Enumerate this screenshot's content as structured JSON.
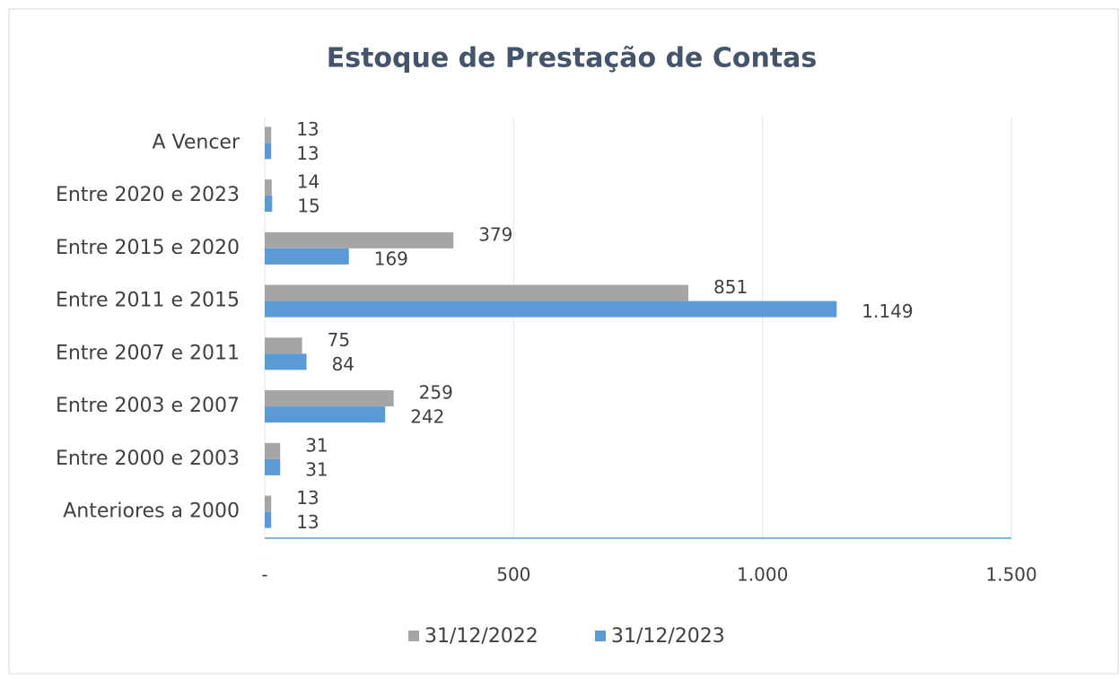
{
  "chart_data": {
    "type": "bar",
    "orientation": "horizontal",
    "title": "Estoque de Prestação de Contas",
    "categories": [
      "A Vencer",
      "Entre 2020 e 2023",
      "Entre 2015 e 2020",
      "Entre 2011 e 2015",
      "Entre 2007 e 2011",
      "Entre 2003 e 2007",
      "Entre 2000 e 2003",
      "Anteriores a 2000"
    ],
    "series": [
      {
        "name": "31/12/2022",
        "color": "#a5a5a5",
        "values": [
          13,
          14,
          379,
          851,
          75,
          259,
          31,
          13
        ]
      },
      {
        "name": "31/12/2023",
        "color": "#5b9bd5",
        "values": [
          13,
          15,
          169,
          1149,
          84,
          242,
          31,
          13
        ],
        "value_labels": [
          "13",
          "15",
          "169",
          "1.149",
          "84",
          "242",
          "31",
          "13"
        ]
      }
    ],
    "xlim": [
      0,
      1500
    ],
    "xticks": [
      {
        "value": 0,
        "label": "-"
      },
      500,
      {
        "value": 1000,
        "label": "1.000"
      },
      {
        "value": 1500,
        "label": "1.500"
      }
    ],
    "grid": true,
    "legend": "bottom"
  }
}
